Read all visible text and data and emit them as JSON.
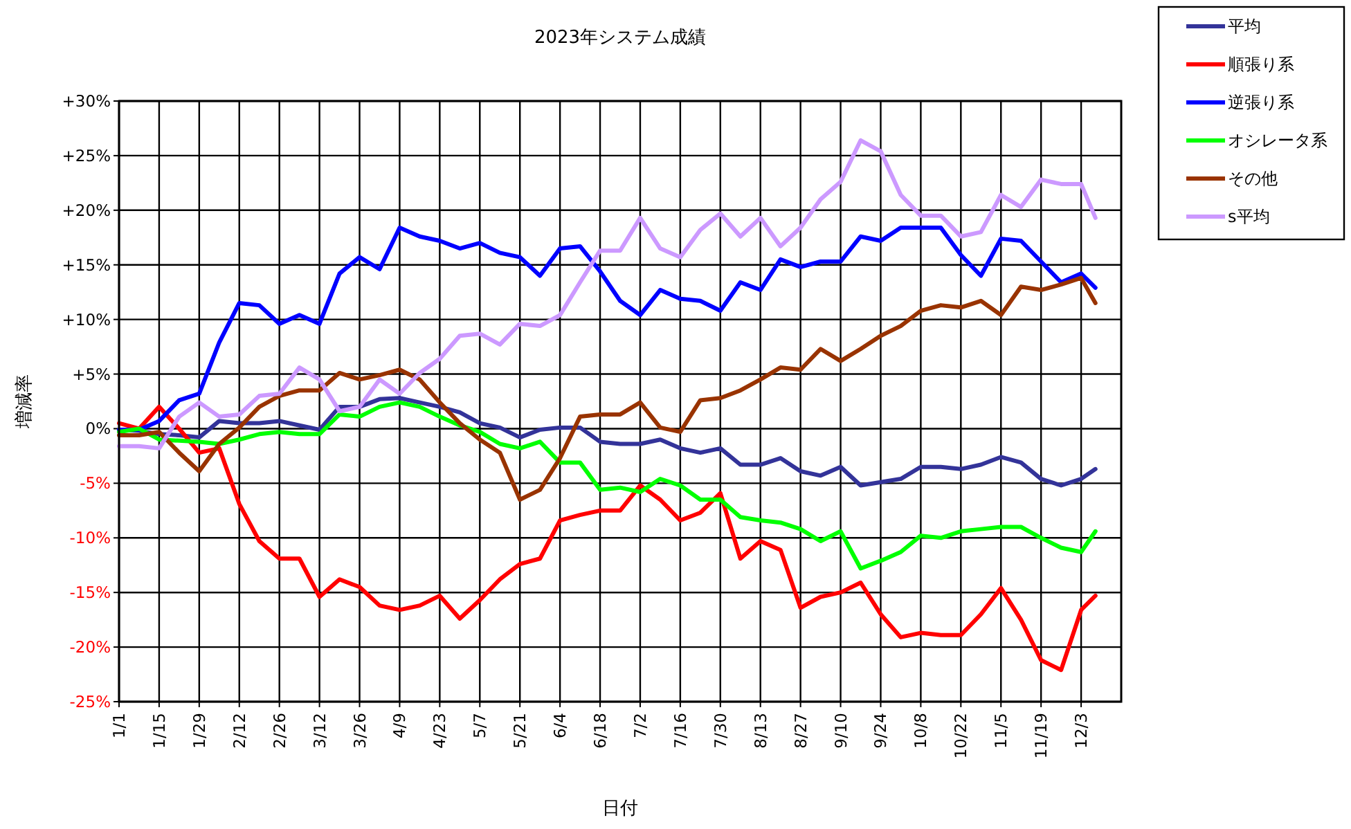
{
  "chart_data": {
    "type": "line",
    "title": "2023年システム成績",
    "xlabel": "日付",
    "ylabel": "増減率",
    "x": [
      "2023-01-01",
      "2023-01-08",
      "2023-01-15",
      "2023-01-22",
      "2023-01-29",
      "2023-02-05",
      "2023-02-12",
      "2023-02-19",
      "2023-02-26",
      "2023-03-05",
      "2023-03-12",
      "2023-03-19",
      "2023-03-26",
      "2023-04-02",
      "2023-04-09",
      "2023-04-16",
      "2023-04-23",
      "2023-04-30",
      "2023-05-07",
      "2023-05-14",
      "2023-05-21",
      "2023-05-28",
      "2023-06-04",
      "2023-06-11",
      "2023-06-18",
      "2023-06-25",
      "2023-07-02",
      "2023-07-09",
      "2023-07-16",
      "2023-07-23",
      "2023-07-30",
      "2023-08-06",
      "2023-08-13",
      "2023-08-20",
      "2023-08-27",
      "2023-09-03",
      "2023-09-10",
      "2023-09-17",
      "2023-09-24",
      "2023-10-01",
      "2023-10-08",
      "2023-10-15",
      "2023-10-22",
      "2023-10-29",
      "2023-11-05",
      "2023-11-12",
      "2023-11-19",
      "2023-11-26",
      "2023-12-03",
      "2023-12-08"
    ],
    "series": [
      {
        "name": "平均",
        "color": "#333399",
        "values": [
          -0.1,
          -0.2,
          -0.5,
          -0.6,
          -0.8,
          0.7,
          0.5,
          0.5,
          0.7,
          0.3,
          -0.1,
          2.0,
          2.0,
          2.7,
          2.8,
          2.4,
          2.0,
          1.5,
          0.5,
          0.1,
          -0.8,
          -0.1,
          0.1,
          0.1,
          -1.2,
          -1.4,
          -1.4,
          -1.0,
          -1.8,
          -2.2,
          -1.8,
          -3.3,
          -3.3,
          -2.7,
          -3.9,
          -4.3,
          -3.5,
          -5.2,
          -4.9,
          -4.6,
          -3.5,
          -3.5,
          -3.7,
          -3.3,
          -2.6,
          -3.1,
          -4.6,
          -5.2,
          -4.6,
          -3.7
        ]
      },
      {
        "name": "順張り系",
        "color": "#ff0000",
        "values": [
          0.5,
          0,
          2.0,
          0,
          -2.2,
          -1.8,
          -6.9,
          -10.3,
          -11.9,
          -11.9,
          -15.4,
          -13.8,
          -14.5,
          -16.2,
          -16.6,
          -16.2,
          -15.3,
          -17.4,
          -15.7,
          -13.8,
          -12.4,
          -11.9,
          -8.4,
          -7.9,
          -7.5,
          -7.5,
          -5.2,
          -6.5,
          -8.4,
          -7.7,
          -5.9,
          -11.9,
          -10.3,
          -11.1,
          -16.4,
          -15.4,
          -15.0,
          -14.1,
          -17.0,
          -19.1,
          -18.7,
          -18.9,
          -18.9,
          -17.0,
          -14.6,
          -17.5,
          -21.2,
          -22.1,
          -16.6,
          -15.3
        ]
      },
      {
        "name": "逆張り系",
        "color": "#0000ff",
        "values": [
          -0.1,
          -0.1,
          0.7,
          2.6,
          3.2,
          7.9,
          11.5,
          11.3,
          9.6,
          10.4,
          9.6,
          14.2,
          15.7,
          14.6,
          18.4,
          17.6,
          17.2,
          16.5,
          17.0,
          16.1,
          15.7,
          14.0,
          16.5,
          16.7,
          14.4,
          11.7,
          10.4,
          12.7,
          11.9,
          11.7,
          10.8,
          13.4,
          12.7,
          15.5,
          14.8,
          15.3,
          15.3,
          17.6,
          17.2,
          18.4,
          18.4,
          18.4,
          15.9,
          14.0,
          17.4,
          17.2,
          15.3,
          13.4,
          14.2,
          12.9
        ]
      },
      {
        "name": "オシレータ系",
        "color": "#00ff00",
        "values": [
          -0.3,
          0,
          -1.0,
          -1.1,
          -1.2,
          -1.4,
          -1.0,
          -0.5,
          -0.3,
          -0.5,
          -0.5,
          1.3,
          1.1,
          2.0,
          2.4,
          2.0,
          1.1,
          0.3,
          -0.3,
          -1.4,
          -1.8,
          -1.2,
          -3.1,
          -3.1,
          -5.6,
          -5.4,
          -5.8,
          -4.6,
          -5.2,
          -6.5,
          -6.5,
          -8.1,
          -8.4,
          -8.6,
          -9.2,
          -10.3,
          -9.4,
          -12.8,
          -12.1,
          -11.3,
          -9.8,
          -10.0,
          -9.4,
          -9.2,
          -9.0,
          -9.0,
          -10.0,
          -10.9,
          -11.3,
          -9.4
        ]
      },
      {
        "name": "その他",
        "color": "#993300",
        "values": [
          -0.6,
          -0.6,
          -0.3,
          -2.2,
          -3.9,
          -1.4,
          0.1,
          2.0,
          3.0,
          3.5,
          3.5,
          5.1,
          4.5,
          4.9,
          5.4,
          4.5,
          2.4,
          0.5,
          -1.0,
          -2.2,
          -6.5,
          -5.6,
          -2.7,
          1.1,
          1.3,
          1.3,
          2.4,
          0.1,
          -0.3,
          2.6,
          2.8,
          3.5,
          4.5,
          5.6,
          5.4,
          7.3,
          6.2,
          7.3,
          8.5,
          9.4,
          10.8,
          11.3,
          11.1,
          11.7,
          10.4,
          13.0,
          12.7,
          13.2,
          13.8,
          11.5
        ]
      },
      {
        "name": "s平均",
        "color": "#cc99ff",
        "values": [
          -1.6,
          -1.6,
          -1.8,
          1.1,
          2.4,
          1.1,
          1.3,
          3.0,
          3.2,
          5.6,
          4.5,
          1.6,
          2.0,
          4.5,
          3.2,
          5.1,
          6.4,
          8.5,
          8.7,
          7.7,
          9.6,
          9.4,
          10.4,
          13.4,
          16.3,
          16.3,
          19.3,
          16.5,
          15.7,
          18.2,
          19.7,
          17.6,
          19.3,
          16.7,
          18.4,
          21.0,
          22.6,
          26.4,
          25.4,
          21.4,
          19.5,
          19.5,
          17.6,
          18.0,
          21.4,
          20.3,
          22.8,
          22.4,
          22.4,
          19.3
        ]
      }
    ],
    "xlim": [
      "2023-01-01",
      "2023-12-17"
    ],
    "xticks": [
      {
        "value": "2023-01-01",
        "label": "1/1"
      },
      {
        "value": "2023-01-15",
        "label": "1/15"
      },
      {
        "value": "2023-01-29",
        "label": "1/29"
      },
      {
        "value": "2023-02-12",
        "label": "2/12"
      },
      {
        "value": "2023-02-26",
        "label": "2/26"
      },
      {
        "value": "2023-03-12",
        "label": "3/12"
      },
      {
        "value": "2023-03-26",
        "label": "3/26"
      },
      {
        "value": "2023-04-09",
        "label": "4/9"
      },
      {
        "value": "2023-04-23",
        "label": "4/23"
      },
      {
        "value": "2023-05-07",
        "label": "5/7"
      },
      {
        "value": "2023-05-21",
        "label": "5/21"
      },
      {
        "value": "2023-06-04",
        "label": "6/4"
      },
      {
        "value": "2023-06-18",
        "label": "6/18"
      },
      {
        "value": "2023-07-02",
        "label": "7/2"
      },
      {
        "value": "2023-07-16",
        "label": "7/16"
      },
      {
        "value": "2023-07-30",
        "label": "7/30"
      },
      {
        "value": "2023-08-13",
        "label": "8/13"
      },
      {
        "value": "2023-08-27",
        "label": "8/27"
      },
      {
        "value": "2023-09-10",
        "label": "9/10"
      },
      {
        "value": "2023-09-24",
        "label": "9/24"
      },
      {
        "value": "2023-10-08",
        "label": "10/8"
      },
      {
        "value": "2023-10-22",
        "label": "10/22"
      },
      {
        "value": "2023-11-05",
        "label": "11/5"
      },
      {
        "value": "2023-11-19",
        "label": "11/19"
      },
      {
        "value": "2023-12-03",
        "label": "12/3"
      }
    ],
    "ylim": [
      -25,
      30
    ],
    "yticks": [
      {
        "value": -25,
        "label": "-25%"
      },
      {
        "value": -20,
        "label": "-20%"
      },
      {
        "value": -15,
        "label": "-15%"
      },
      {
        "value": -10,
        "label": "-10%"
      },
      {
        "value": -5,
        "label": "-5%"
      },
      {
        "value": 0,
        "label": "0%"
      },
      {
        "value": 5,
        "label": "+5%"
      },
      {
        "value": 10,
        "label": "+10%"
      },
      {
        "value": 15,
        "label": "+15%"
      },
      {
        "value": 20,
        "label": "+20%"
      },
      {
        "value": 25,
        "label": "+25%"
      },
      {
        "value": 30,
        "label": "+30%"
      }
    ],
    "grid": true,
    "legend": "top right",
    "marker": "none"
  }
}
